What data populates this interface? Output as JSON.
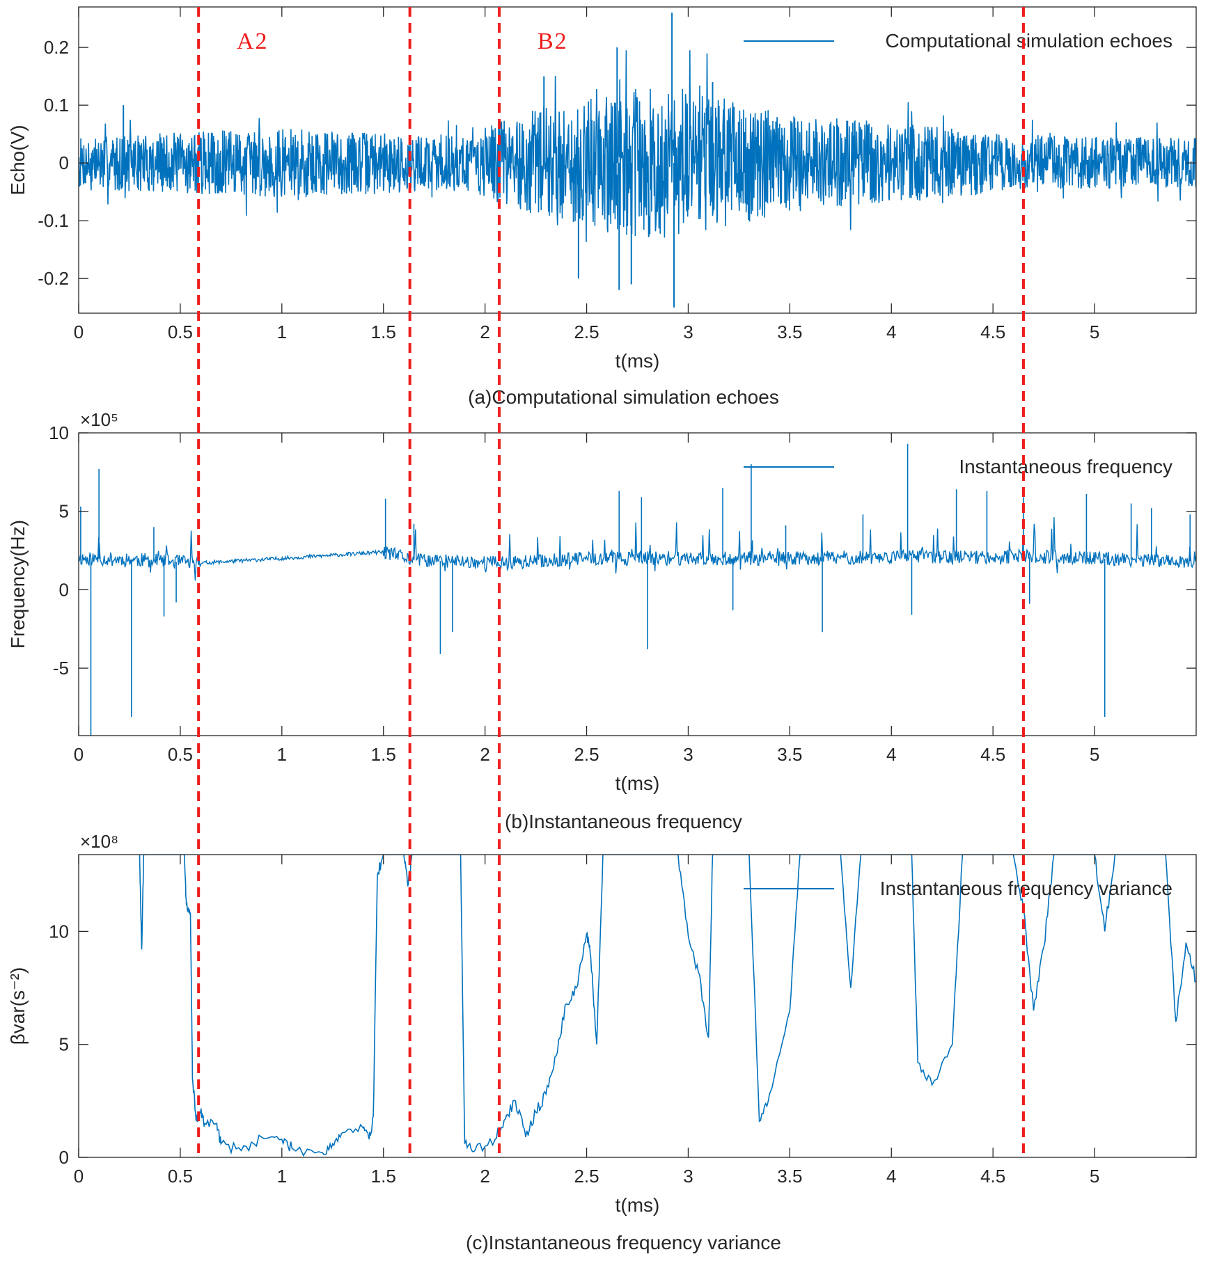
{
  "figure": {
    "region_labels": [
      "A2",
      "B2"
    ],
    "boundary_color": "#ee1c1c",
    "signal_color": "#0072bd"
  },
  "chart_data": [
    {
      "type": "line",
      "id": "echo",
      "caption": "(a)Computational simulation echoes",
      "legend": "Computational simulation echoes",
      "xlabel": "t(ms)",
      "ylabel": "Echo(V)",
      "exponent": "",
      "xlim": [
        0,
        5.5
      ],
      "ylim": [
        -0.26,
        0.27
      ],
      "xticks": [
        0,
        0.5,
        1,
        1.5,
        2,
        2.5,
        3,
        3.5,
        4,
        4.5,
        5
      ],
      "xtick_labels": [
        "0",
        "0.5",
        "1",
        "1.5",
        "2",
        "2.5",
        "3",
        "3.5",
        "4",
        "4.5",
        "5"
      ],
      "yticks": [
        -0.2,
        -0.1,
        0,
        0.1,
        0.2
      ],
      "ytick_labels": [
        "-0.2",
        "-0.1",
        "0",
        "0.1",
        "0.2"
      ],
      "envelope": {
        "t": [
          0,
          0.3,
          0.6,
          1.0,
          1.4,
          1.63,
          1.9,
          2.07,
          2.3,
          2.5,
          2.7,
          2.95,
          3.2,
          3.5,
          4.0,
          4.6,
          5.0,
          5.5
        ],
        "amp": [
          0.045,
          0.05,
          0.055,
          0.06,
          0.055,
          0.05,
          0.05,
          0.07,
          0.1,
          0.11,
          0.13,
          0.13,
          0.11,
          0.085,
          0.07,
          0.05,
          0.045,
          0.045
        ]
      },
      "peaks": [
        {
          "t": 2.92,
          "v": 0.26
        },
        {
          "t": 2.93,
          "v": -0.25
        },
        {
          "t": 2.65,
          "v": 0.2
        },
        {
          "t": 2.66,
          "v": -0.22
        },
        {
          "t": 2.46,
          "v": -0.2
        },
        {
          "t": 2.72,
          "v": -0.21
        },
        {
          "t": 0.22,
          "v": 0.1
        },
        {
          "t": 2.29,
          "v": 0.15
        },
        {
          "t": 3.12,
          "v": 0.14
        }
      ]
    },
    {
      "type": "line",
      "id": "frequency",
      "caption": "(b)Instantaneous frequency",
      "legend": "Instantaneous frequency",
      "xlabel": "t(ms)",
      "ylabel": "Frequency(Hz)",
      "exponent": "×10⁵",
      "xlim": [
        0,
        5.5
      ],
      "ylim": [
        -9.3,
        10
      ],
      "xticks": [
        0,
        0.5,
        1,
        1.5,
        2,
        2.5,
        3,
        3.5,
        4,
        4.5,
        5
      ],
      "xtick_labels": [
        "0",
        "0.5",
        "1",
        "1.5",
        "2",
        "2.5",
        "3",
        "3.5",
        "4",
        "4.5",
        "5"
      ],
      "yticks": [
        -5,
        0,
        5,
        10
      ],
      "ytick_labels": [
        "-5",
        "0",
        "5",
        "10"
      ],
      "baseline": {
        "t": [
          0,
          0.3,
          0.6,
          1.0,
          1.5,
          1.65,
          2.1,
          2.5,
          3.0,
          3.5,
          4.0,
          4.65,
          5.0,
          5.5
        ],
        "v": [
          2.0,
          1.9,
          1.7,
          2.0,
          2.4,
          1.9,
          1.7,
          2.0,
          2.0,
          2.0,
          2.1,
          2.1,
          2.0,
          1.8
        ]
      },
      "spikes": [
        {
          "t": 0.01,
          "v": 5.3
        },
        {
          "t": 0.06,
          "v": -9.3
        },
        {
          "t": 0.1,
          "v": 7.7
        },
        {
          "t": 0.26,
          "v": -8.1
        },
        {
          "t": 0.37,
          "v": 4.0
        },
        {
          "t": 0.42,
          "v": -1.7
        },
        {
          "t": 0.48,
          "v": -0.8
        },
        {
          "t": 1.51,
          "v": 5.8
        },
        {
          "t": 1.65,
          "v": 4.2
        },
        {
          "t": 1.78,
          "v": -4.1
        },
        {
          "t": 1.84,
          "v": -2.7
        },
        {
          "t": 2.66,
          "v": 6.3
        },
        {
          "t": 2.77,
          "v": 5.9
        },
        {
          "t": 2.8,
          "v": -3.8
        },
        {
          "t": 3.17,
          "v": 6.5
        },
        {
          "t": 3.22,
          "v": -1.3
        },
        {
          "t": 3.31,
          "v": 8.0
        },
        {
          "t": 3.48,
          "v": 4.1
        },
        {
          "t": 3.66,
          "v": -2.7
        },
        {
          "t": 3.86,
          "v": 4.8
        },
        {
          "t": 4.08,
          "v": 9.3
        },
        {
          "t": 4.1,
          "v": -1.6
        },
        {
          "t": 4.32,
          "v": 6.4
        },
        {
          "t": 4.47,
          "v": 6.3
        },
        {
          "t": 4.65,
          "v": 5.9
        },
        {
          "t": 4.68,
          "v": -0.9
        },
        {
          "t": 4.96,
          "v": 6.1
        },
        {
          "t": 5.05,
          "v": -8.1
        },
        {
          "t": 5.18,
          "v": 5.5
        },
        {
          "t": 5.28,
          "v": 5.2
        },
        {
          "t": 5.47,
          "v": 4.8
        }
      ]
    },
    {
      "type": "line",
      "id": "variance",
      "caption": "(c)Instantaneous frequency variance",
      "legend": "Instantaneous frequency variance",
      "xlabel": "t(ms)",
      "ylabel": "βvar(s⁻²)",
      "exponent": "×10⁸",
      "xlim": [
        0,
        5.5
      ],
      "ylim": [
        0,
        13.4
      ],
      "xticks": [
        0,
        0.5,
        1,
        1.5,
        2,
        2.5,
        3,
        3.5,
        4,
        4.5,
        5
      ],
      "xtick_labels": [
        "0",
        "0.5",
        "1",
        "1.5",
        "2",
        "2.5",
        "3",
        "3.5",
        "4",
        "4.5",
        "5"
      ],
      "yticks": [
        0,
        5,
        10
      ],
      "ytick_labels": [
        "0",
        "5",
        "10"
      ],
      "points": [
        [
          0.3,
          13.4
        ],
        [
          0.31,
          9.2
        ],
        [
          0.32,
          13.4
        ],
        [
          0.52,
          13.4
        ],
        [
          0.53,
          11.2
        ],
        [
          0.55,
          10.8
        ],
        [
          0.56,
          3.5
        ],
        [
          0.58,
          1.6
        ],
        [
          0.6,
          2.0
        ],
        [
          0.62,
          1.5
        ],
        [
          0.68,
          1.5
        ],
        [
          0.7,
          0.6
        ],
        [
          0.8,
          0.3
        ],
        [
          0.9,
          0.9
        ],
        [
          1.0,
          0.8
        ],
        [
          1.05,
          0.4
        ],
        [
          1.2,
          0.2
        ],
        [
          1.25,
          0.6
        ],
        [
          1.3,
          1.1
        ],
        [
          1.4,
          1.3
        ],
        [
          1.43,
          0.8
        ],
        [
          1.45,
          1.8
        ],
        [
          1.47,
          12.5
        ],
        [
          1.5,
          13.4
        ],
        [
          1.6,
          13.4
        ],
        [
          1.62,
          12.0
        ],
        [
          1.64,
          13.4
        ],
        [
          1.88,
          13.4
        ],
        [
          1.9,
          0.6
        ],
        [
          1.95,
          0.3
        ],
        [
          2.05,
          0.8
        ],
        [
          2.1,
          1.7
        ],
        [
          2.15,
          2.5
        ],
        [
          2.2,
          0.9
        ],
        [
          2.25,
          2.0
        ],
        [
          2.3,
          2.8
        ],
        [
          2.35,
          4.5
        ],
        [
          2.4,
          6.8
        ],
        [
          2.45,
          7.5
        ],
        [
          2.5,
          9.9
        ],
        [
          2.52,
          8.9
        ],
        [
          2.55,
          5.0
        ],
        [
          2.58,
          13.4
        ],
        [
          2.95,
          13.4
        ],
        [
          3.0,
          9.8
        ],
        [
          3.05,
          8.2
        ],
        [
          3.1,
          5.3
        ],
        [
          3.12,
          13.4
        ],
        [
          3.3,
          13.4
        ],
        [
          3.35,
          1.6
        ],
        [
          3.4,
          2.8
        ],
        [
          3.5,
          6.5
        ],
        [
          3.55,
          13.4
        ],
        [
          3.75,
          13.4
        ],
        [
          3.8,
          7.5
        ],
        [
          3.85,
          13.4
        ],
        [
          4.1,
          13.4
        ],
        [
          4.13,
          4.2
        ],
        [
          4.2,
          3.2
        ],
        [
          4.3,
          5.0
        ],
        [
          4.35,
          13.4
        ],
        [
          4.6,
          13.4
        ],
        [
          4.65,
          11.0
        ],
        [
          4.7,
          6.5
        ],
        [
          4.75,
          9.3
        ],
        [
          4.8,
          13.4
        ],
        [
          5.0,
          13.4
        ],
        [
          5.05,
          10.0
        ],
        [
          5.1,
          13.4
        ],
        [
          5.35,
          13.4
        ],
        [
          5.4,
          6.0
        ],
        [
          5.45,
          9.5
        ],
        [
          5.5,
          7.8
        ]
      ]
    }
  ],
  "boundaries_t": [
    0.59,
    1.63,
    2.07,
    4.65
  ]
}
